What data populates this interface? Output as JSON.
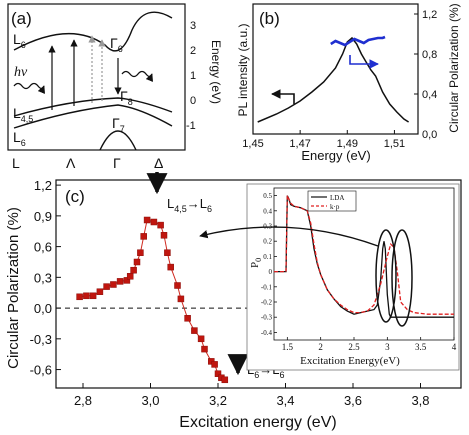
{
  "chart_data": [
    {
      "panel": "(a)",
      "type": "diagram",
      "ylabel": "Energy (eV)",
      "yticks": [
        "3",
        "2",
        "1",
        "0",
        "-1"
      ],
      "xticks": [
        "L",
        "Λ",
        "Γ",
        "Δ"
      ],
      "band_labels": [
        "L",
        "6",
        "L",
        "4,5",
        "L",
        "6",
        "Γ",
        "6",
        "Γ",
        "8",
        "Γ",
        "7"
      ],
      "photon_label": "hν"
    },
    {
      "panel": "(b)",
      "type": "line",
      "xlabel": "Energy (eV)",
      "ylabel_left": "PL intensity (a.u.)",
      "ylabel_right": "Circular Polarization (%)",
      "xticks": [
        "1,45",
        "1,47",
        "1,49",
        "1,51"
      ],
      "yticks_right": [
        "1,2",
        "0,8",
        "0,4",
        "0,0"
      ],
      "xlim": [
        1.45,
        1.52
      ],
      "ylim_right": [
        0,
        1.3
      ],
      "series": [
        {
          "axis": "left",
          "color": "#111111",
          "x": [
            1.452,
            1.46,
            1.465,
            1.47,
            1.475,
            1.48,
            1.485,
            1.488,
            1.49,
            1.492,
            1.494,
            1.496,
            1.498,
            1.5,
            1.502,
            1.505,
            1.508,
            1.511,
            1.514,
            1.516
          ],
          "y": [
            0.12,
            0.2,
            0.26,
            0.33,
            0.42,
            0.52,
            0.66,
            0.8,
            0.92,
            0.96,
            0.9,
            0.8,
            0.72,
            0.64,
            0.58,
            0.42,
            0.3,
            0.22,
            0.15,
            0.12
          ]
        },
        {
          "axis": "right",
          "color": "#1f2fd0",
          "x": [
            1.483,
            1.485,
            1.487,
            1.489,
            1.491,
            1.493,
            1.495,
            1.497,
            1.499,
            1.501,
            1.503,
            1.505,
            1.506
          ],
          "y": [
            0.9,
            0.93,
            0.91,
            0.89,
            0.92,
            0.95,
            0.93,
            0.91,
            0.94,
            0.95,
            0.96,
            0.96,
            0.97
          ]
        }
      ]
    },
    {
      "panel": "(c)",
      "type": "scatter",
      "xlabel": "Excitation energy (eV)",
      "ylabel": "Circular Polarization (%)",
      "xticks": [
        "2,8",
        "3,0",
        "3,2",
        "3,4",
        "3,6",
        "3,8"
      ],
      "yticks": [
        "1,2",
        "0,9",
        "0,6",
        "0,3",
        "0,0",
        "-0,3",
        "-0,6"
      ],
      "xlim": [
        2.72,
        3.92
      ],
      "ylim": [
        -0.78,
        1.25
      ],
      "color": "#c0160f",
      "points": [
        [
          2.79,
          0.11
        ],
        [
          2.81,
          0.12
        ],
        [
          2.83,
          0.12
        ],
        [
          2.85,
          0.16
        ],
        [
          2.87,
          0.21
        ],
        [
          2.89,
          0.23
        ],
        [
          2.91,
          0.26
        ],
        [
          2.93,
          0.27
        ],
        [
          2.94,
          0.31
        ],
        [
          2.95,
          0.37
        ],
        [
          2.96,
          0.45
        ],
        [
          2.97,
          0.54
        ],
        [
          2.98,
          0.7
        ],
        [
          2.99,
          0.86
        ],
        [
          3.01,
          0.84
        ],
        [
          3.03,
          0.81
        ],
        [
          3.04,
          0.71
        ],
        [
          3.05,
          0.54
        ],
        [
          3.06,
          0.4
        ],
        [
          3.08,
          0.22
        ],
        [
          3.09,
          0.09
        ],
        [
          3.11,
          -0.1
        ],
        [
          3.13,
          -0.22
        ],
        [
          3.15,
          -0.3
        ],
        [
          3.16,
          -0.4
        ],
        [
          3.18,
          -0.52
        ],
        [
          3.19,
          -0.55
        ],
        [
          3.2,
          -0.64
        ],
        [
          3.21,
          -0.68
        ],
        [
          3.22,
          -0.7
        ]
      ],
      "annotations": [
        {
          "text_main": "L",
          "text_sub": "4,5",
          "arrow": "→",
          "text_main2": "L",
          "text_sub2": "6"
        },
        {
          "text_main": "L",
          "text_sub": "6",
          "arrow": "→",
          "text_main2": "L",
          "text_sub2": "6"
        }
      ]
    },
    {
      "panel": "inset",
      "type": "line",
      "xlabel": "Excitation Energy(eV)",
      "ylabel": "P",
      "ylabel_sub": "0",
      "xticks": [
        "1.5",
        "2",
        "2.5",
        "3",
        "3.5",
        "4"
      ],
      "yticks": [
        "0.5",
        "0.4",
        "0.3",
        "0.2",
        "0.1",
        "0",
        "-0.1",
        "-0.2",
        "-0.3",
        "-0.4"
      ],
      "xlim": [
        1.3,
        4.0
      ],
      "ylim": [
        -0.45,
        0.55
      ],
      "legend": [
        "LDA",
        "k·p"
      ],
      "series": [
        {
          "name": "LDA",
          "color": "#111111",
          "dash": false,
          "x": [
            1.3,
            1.48,
            1.5,
            1.52,
            1.55,
            1.6,
            1.7,
            1.8,
            1.85,
            1.9,
            1.95,
            2.0,
            2.1,
            2.2,
            2.3,
            2.4,
            2.5,
            2.6,
            2.7,
            2.8,
            2.85,
            2.9,
            2.93,
            2.95,
            2.97,
            3.0,
            3.03,
            3.05,
            3.08,
            3.1,
            3.2,
            3.3,
            3.5,
            4.0
          ],
          "y": [
            0,
            0,
            0.5,
            0.48,
            0.44,
            0.43,
            0.42,
            0.4,
            0.3,
            0.15,
            0.05,
            -0.02,
            -0.12,
            -0.18,
            -0.23,
            -0.26,
            -0.28,
            -0.27,
            -0.26,
            -0.25,
            -0.22,
            -0.05,
            0.15,
            0.2,
            0.15,
            -0.15,
            -0.28,
            -0.3,
            -0.3,
            -0.3,
            -0.3,
            -0.3,
            -0.3,
            -0.3
          ]
        },
        {
          "name": "k·p",
          "color": "#e02020",
          "dash": true,
          "x": [
            1.3,
            1.48,
            1.5,
            1.52,
            1.55,
            1.6,
            1.7,
            1.8,
            1.85,
            1.9,
            1.95,
            2.0,
            2.1,
            2.2,
            2.3,
            2.4,
            2.5,
            2.6,
            2.7,
            2.8,
            2.9,
            3.0,
            3.05,
            3.1,
            3.15,
            3.2,
            3.3,
            3.4,
            3.6,
            4.0
          ],
          "y": [
            0,
            0,
            0.5,
            0.48,
            0.45,
            0.43,
            0.42,
            0.4,
            0.32,
            0.18,
            0.06,
            -0.02,
            -0.12,
            -0.18,
            -0.22,
            -0.25,
            -0.27,
            -0.27,
            -0.26,
            -0.22,
            -0.08,
            0.1,
            0.18,
            0.16,
            0.0,
            -0.2,
            -0.25,
            -0.27,
            -0.28,
            -0.28
          ]
        }
      ]
    }
  ]
}
